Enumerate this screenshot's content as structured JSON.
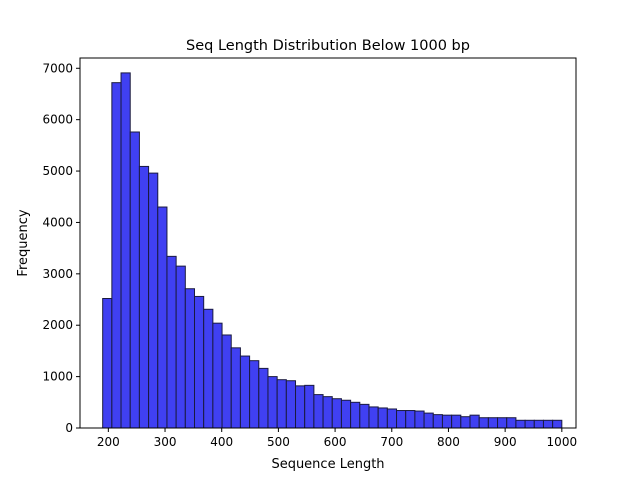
{
  "chart_data": {
    "type": "bar",
    "title": "Seq Length Distribution Below 1000 bp",
    "xlabel": "Sequence Length",
    "ylabel": "Frequency",
    "xlim": [
      150,
      1025
    ],
    "ylim": [
      0,
      7200
    ],
    "xticks": [
      200,
      300,
      400,
      500,
      600,
      700,
      800,
      900,
      1000
    ],
    "yticks": [
      0,
      1000,
      2000,
      3000,
      4000,
      5000,
      6000,
      7000
    ],
    "bin_start": 190,
    "bin_width": 16.2,
    "values": [
      2520,
      6720,
      6910,
      5760,
      5090,
      4960,
      4300,
      3340,
      3150,
      2710,
      2560,
      2310,
      2040,
      1810,
      1560,
      1400,
      1310,
      1160,
      1000,
      940,
      920,
      820,
      830,
      650,
      610,
      570,
      540,
      500,
      460,
      410,
      390,
      370,
      340,
      340,
      330,
      290,
      260,
      250,
      250,
      220,
      250,
      200,
      200,
      200,
      200,
      150,
      150,
      150,
      150,
      150
    ],
    "bar_color": "#4040f2",
    "edge_color": "#1a1a40",
    "grid": false,
    "legend": false
  }
}
